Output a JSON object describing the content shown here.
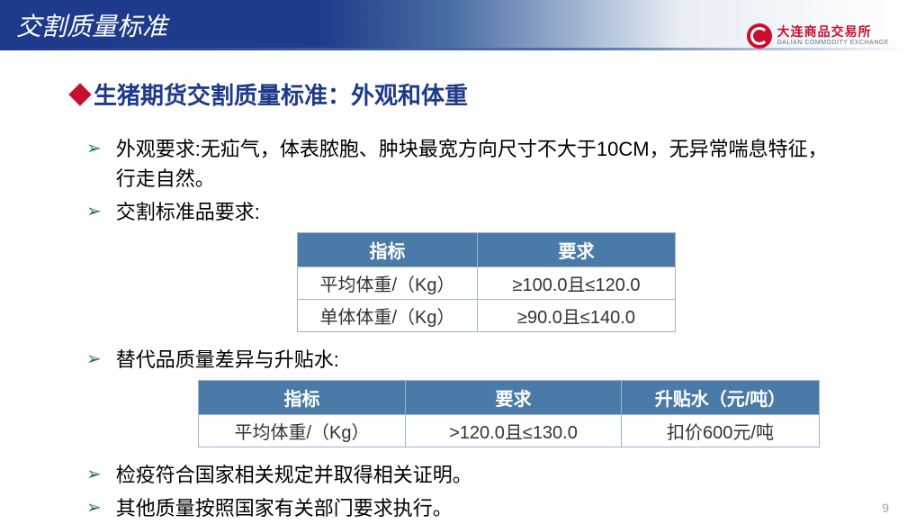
{
  "header": {
    "title": "交割质量标准",
    "logo_cn": "大连商品交易所",
    "logo_en": "DALIAN COMMODITY EXCHANGE"
  },
  "section": {
    "title": "生猪期货交割质量标准：外观和体重"
  },
  "bullets": {
    "b1": "外观要求:无疝气，体表脓胞、肿块最宽方向尺寸不大于10CM，无异常喘息特征，行走自然。",
    "b2": "交割标准品要求:",
    "b3": "替代品质量差异与升贴水:",
    "b4": "检疫符合国家相关规定并取得相关证明。",
    "b5": "其他质量按照国家有关部门要求执行。"
  },
  "table1": {
    "headers": {
      "c1": "指标",
      "c2": "要求"
    },
    "rows": [
      {
        "c1": "平均体重/（Kg）",
        "c2": "≥100.0且≤120.0"
      },
      {
        "c1": "单体体重/（Kg）",
        "c2": "≥90.0且≤140.0"
      }
    ]
  },
  "table2": {
    "headers": {
      "c1": "指标",
      "c2": "要求",
      "c3": "升贴水（元/吨）"
    },
    "rows": [
      {
        "c1": "平均体重/（Kg）",
        "c2": ">120.0且≤130.0",
        "c3": "扣价600元/吨"
      }
    ]
  },
  "page_number": "9",
  "colors": {
    "header_blue": "#1e3a8a",
    "accent_red": "#c8102e",
    "bullet_green": "#1e7a3e",
    "table_header": "#4a7aa8",
    "table_border": "#9bb5cc"
  }
}
